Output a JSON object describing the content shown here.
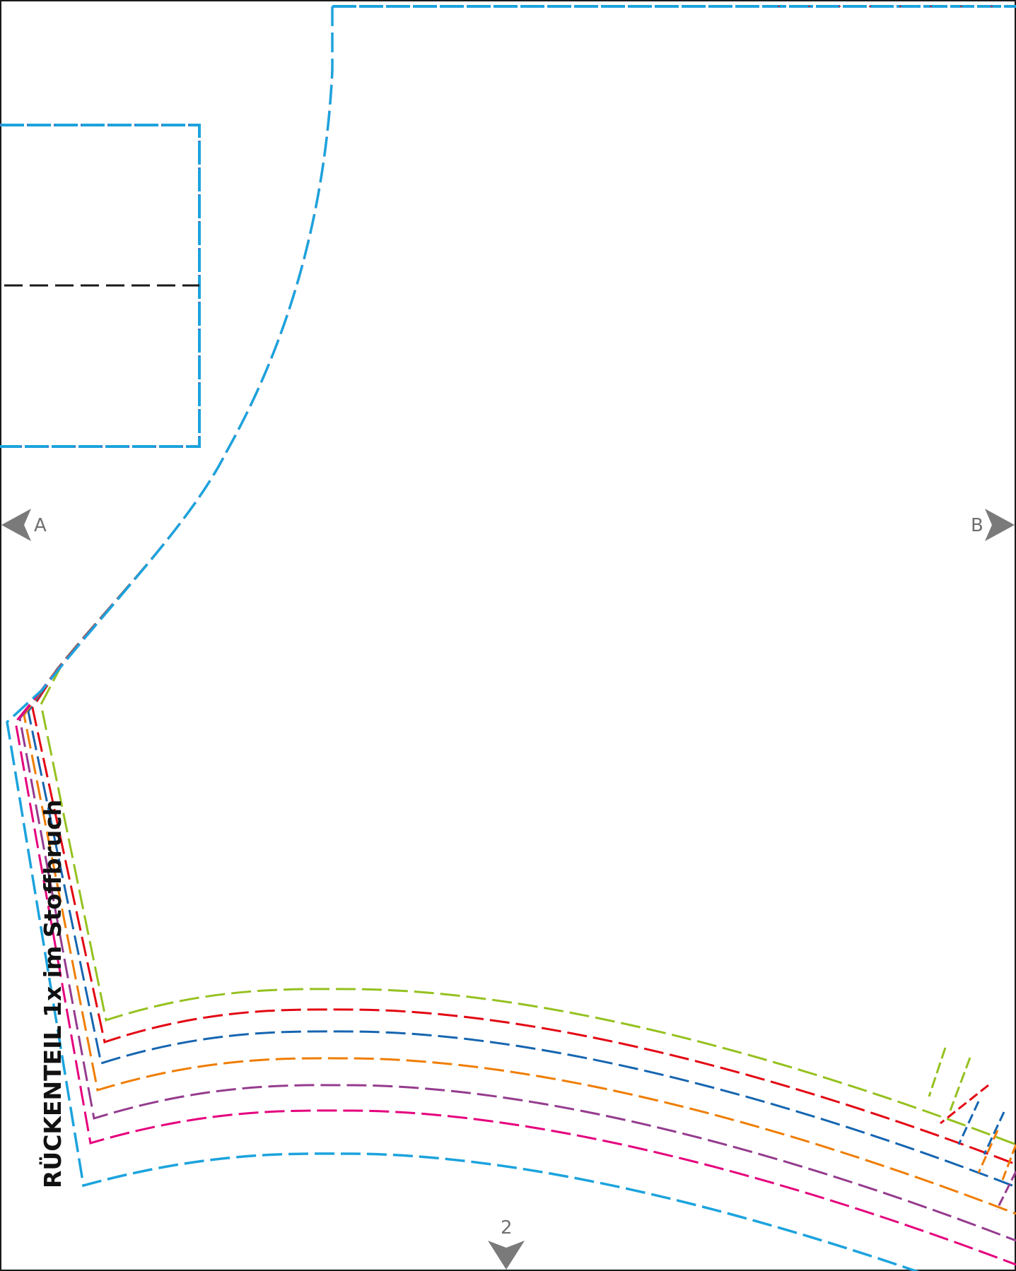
{
  "piece_label": "RÜCKENTEIL 1x im Stoffbruch",
  "markers": {
    "left": "A",
    "right": "B",
    "bottom": "2"
  },
  "colors": {
    "border": "#1a1a1a",
    "marker": "#7a7a7a",
    "fold_line": "#1a1a1a",
    "cyan": "#1ca3dd",
    "green": "#95c11f",
    "red": "#e30613",
    "blue": "#1565b0",
    "orange": "#ef7d00",
    "purple": "#953b8e",
    "magenta": "#e5007d"
  }
}
